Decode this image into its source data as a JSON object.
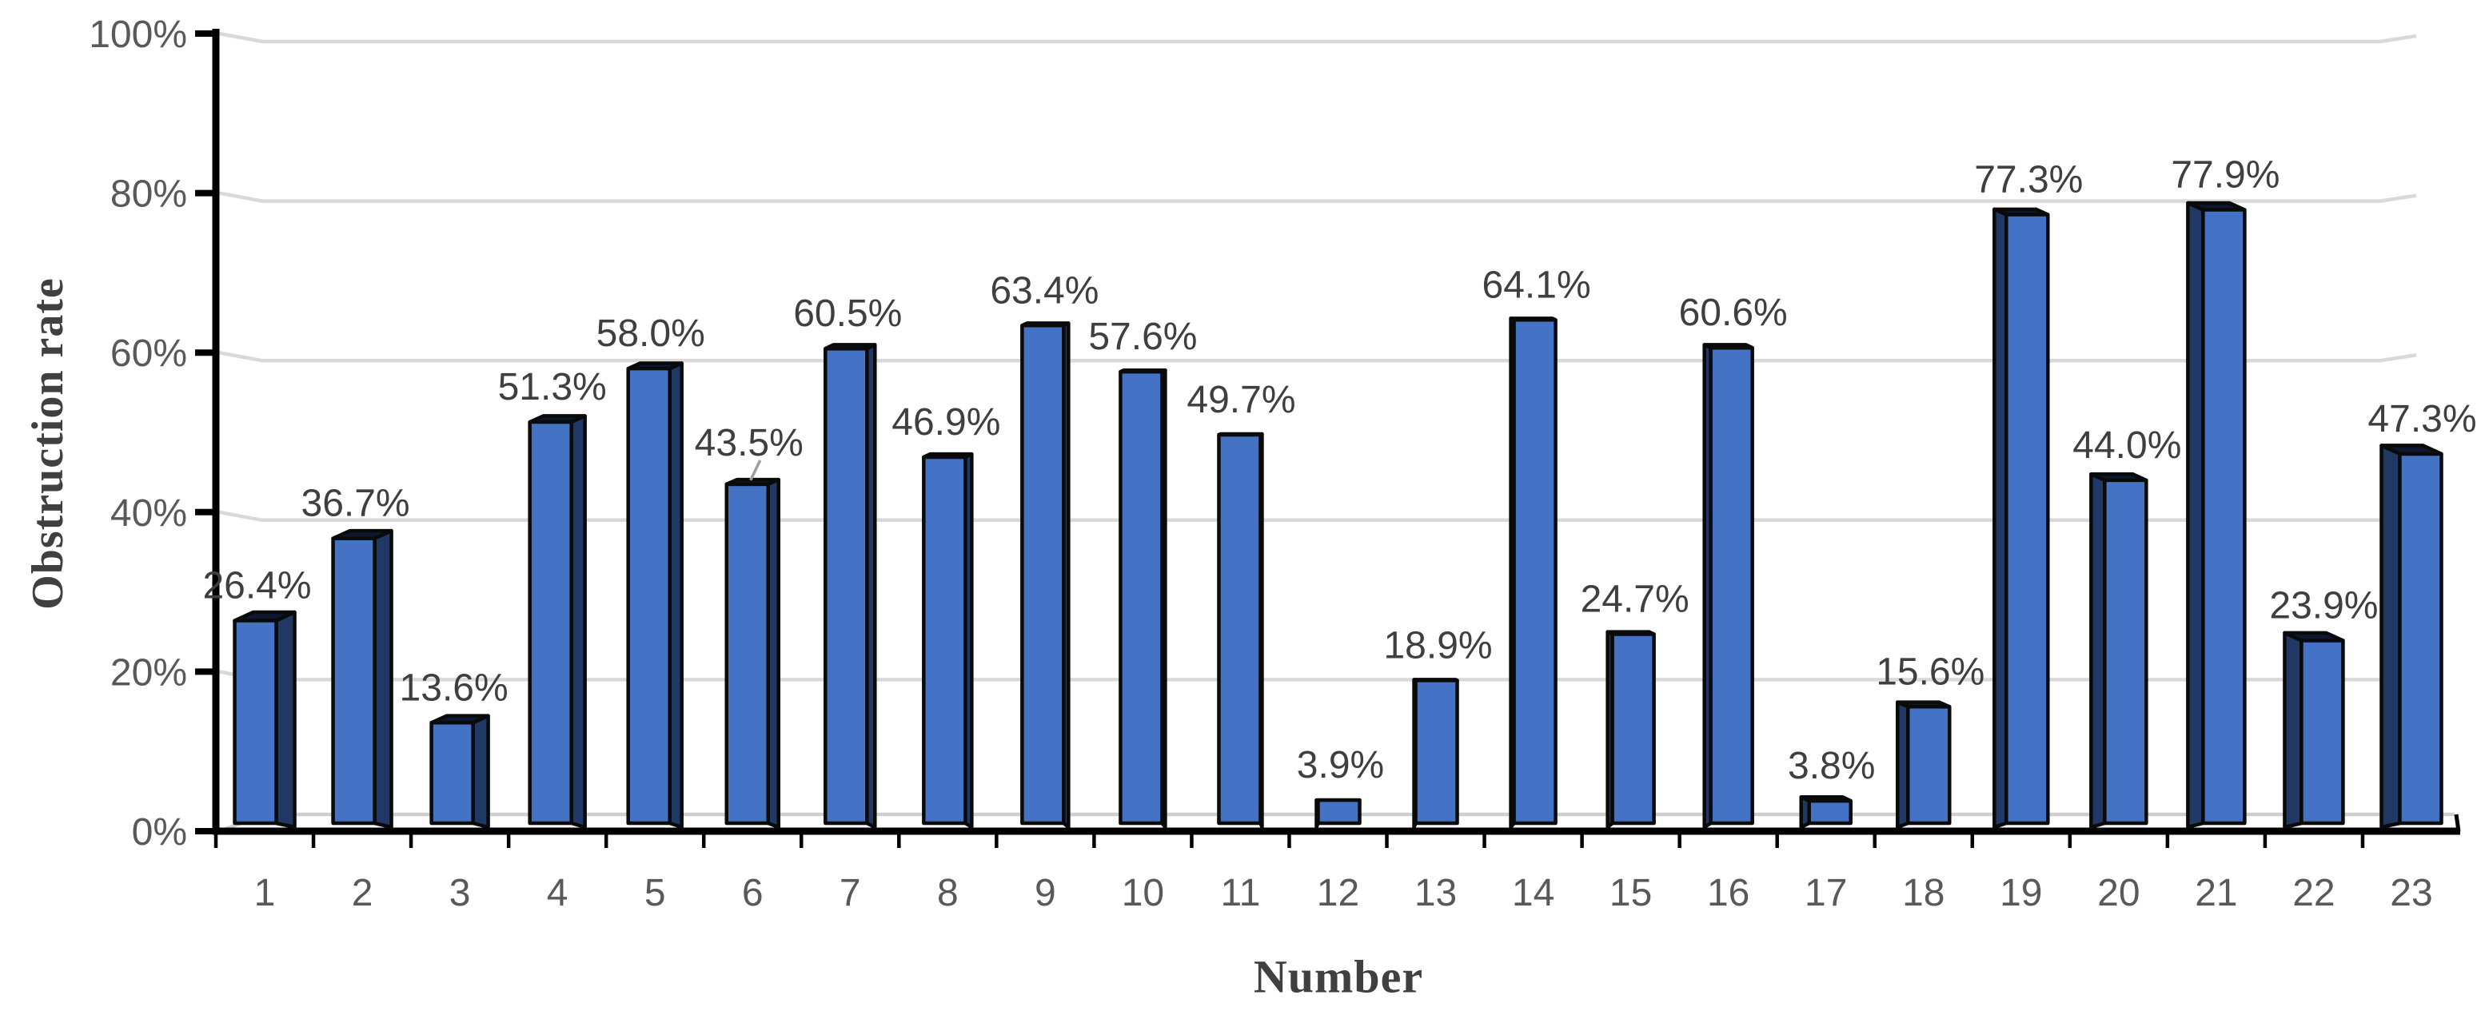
{
  "chart_data": {
    "type": "bar",
    "effect": "3d-perspective-columns",
    "title": "",
    "xlabel": "Number",
    "ylabel": "Obstruction rate",
    "categories": [
      "1",
      "2",
      "3",
      "4",
      "5",
      "6",
      "7",
      "8",
      "9",
      "10",
      "11",
      "12",
      "13",
      "14",
      "15",
      "16",
      "17",
      "18",
      "19",
      "20",
      "21",
      "22",
      "23"
    ],
    "values": [
      26.4,
      36.7,
      13.6,
      51.3,
      58.0,
      43.5,
      60.5,
      46.9,
      63.4,
      57.6,
      49.7,
      3.9,
      18.9,
      64.1,
      24.7,
      60.6,
      3.8,
      15.6,
      77.3,
      44.0,
      77.9,
      23.9,
      47.3
    ],
    "data_labels": [
      "26.4%",
      "36.7%",
      "13.6%",
      "51.3%",
      "58.0%",
      "43.5%",
      "60.5%",
      "46.9%",
      "63.4%",
      "57.6%",
      "49.7%",
      "3.9%",
      "18.9%",
      "64.1%",
      "24.7%",
      "60.6%",
      "3.8%",
      "15.6%",
      "77.3%",
      "44.0%",
      "77.9%",
      "23.9%",
      "47.3%"
    ],
    "ylim": [
      0,
      100
    ],
    "yticks": [
      {
        "value": 0,
        "label": "0%"
      },
      {
        "value": 20,
        "label": "20%"
      },
      {
        "value": 40,
        "label": "40%"
      },
      {
        "value": 60,
        "label": "60%"
      },
      {
        "value": 80,
        "label": "80%"
      },
      {
        "value": 100,
        "label": "100%"
      }
    ],
    "grid": true,
    "legend": "none",
    "annotations": [
      {
        "category": "6",
        "note": "data label raised with gray leader line to bar top"
      }
    ],
    "colors": {
      "bar_front": "#4472c4",
      "bar_side": "#1f3864",
      "bar_top": "#0d1830",
      "bar_outline": "#0a0a0a",
      "gridline": "#d9d9d9",
      "floor_line": "#cfcfcf",
      "axis_line": "#000000",
      "tick_label": "#595959",
      "data_label": "#3f3f3f",
      "axis_title": "#404040",
      "leader_line": "#9e9e9e",
      "background": "#ffffff"
    }
  }
}
